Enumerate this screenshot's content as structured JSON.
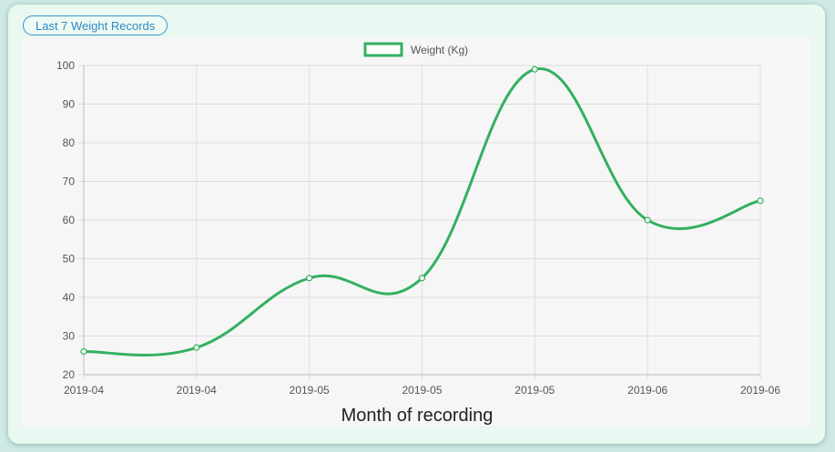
{
  "header": {
    "badge_label": "Last 7 Weight Records"
  },
  "chart_data": {
    "type": "line",
    "categories": [
      "2019-04",
      "2019-04",
      "2019-05",
      "2019-05",
      "2019-05",
      "2019-06",
      "2019-06"
    ],
    "series": [
      {
        "name": "Weight (Kg)",
        "values": [
          26,
          27,
          45,
          45,
          99,
          60,
          65
        ],
        "color": "#33b060"
      }
    ],
    "xlabel": "Month of recording",
    "ylabel": "",
    "ylim": [
      20,
      100
    ],
    "yticks": [
      20,
      30,
      40,
      50,
      60,
      70,
      80,
      90,
      100
    ],
    "grid": true,
    "legend": "top-center",
    "colors": {
      "line": "#33b060",
      "grid": "#dddddd",
      "axis": "#bbbbbb"
    }
  }
}
